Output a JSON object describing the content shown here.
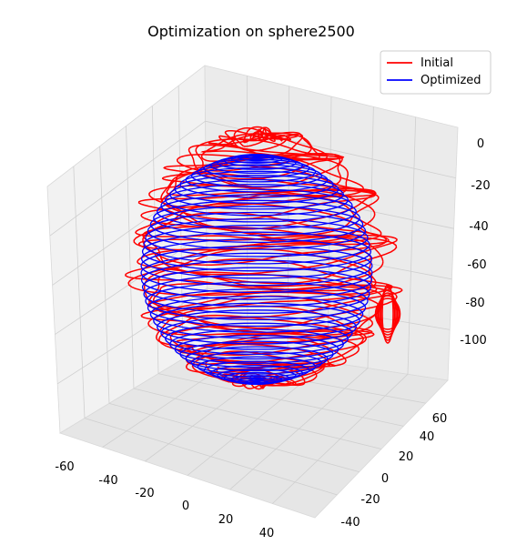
{
  "chart_data": {
    "type": "line",
    "projection": "3d",
    "title": "Optimization on sphere2500",
    "xlabel": "",
    "ylabel": "",
    "zlabel": "",
    "xlim": [
      -65,
      50
    ],
    "ylim": [
      -45,
      70
    ],
    "zlim": [
      -115,
      5
    ],
    "x_ticks": [
      "-60",
      "-40",
      "-20",
      "0",
      "20",
      "40"
    ],
    "y_ticks": [
      "-40",
      "-20",
      "0",
      "20",
      "40",
      "60"
    ],
    "z_ticks": [
      "0",
      "-20",
      "-40",
      "-60",
      "-80",
      "-100"
    ],
    "grid": true,
    "legend": "top-right",
    "series": [
      {
        "name": "Initial",
        "color": "#ff0000",
        "shape": "distorted sphere of stacked rings",
        "center": [
          -5,
          12,
          -55
        ],
        "radius": 57,
        "rings": 50
      },
      {
        "name": "Optimized",
        "color": "#0000ff",
        "shape": "sphere of stacked rings",
        "center": [
          -5,
          12,
          -55
        ],
        "radius": 52,
        "rings": 50
      }
    ]
  }
}
